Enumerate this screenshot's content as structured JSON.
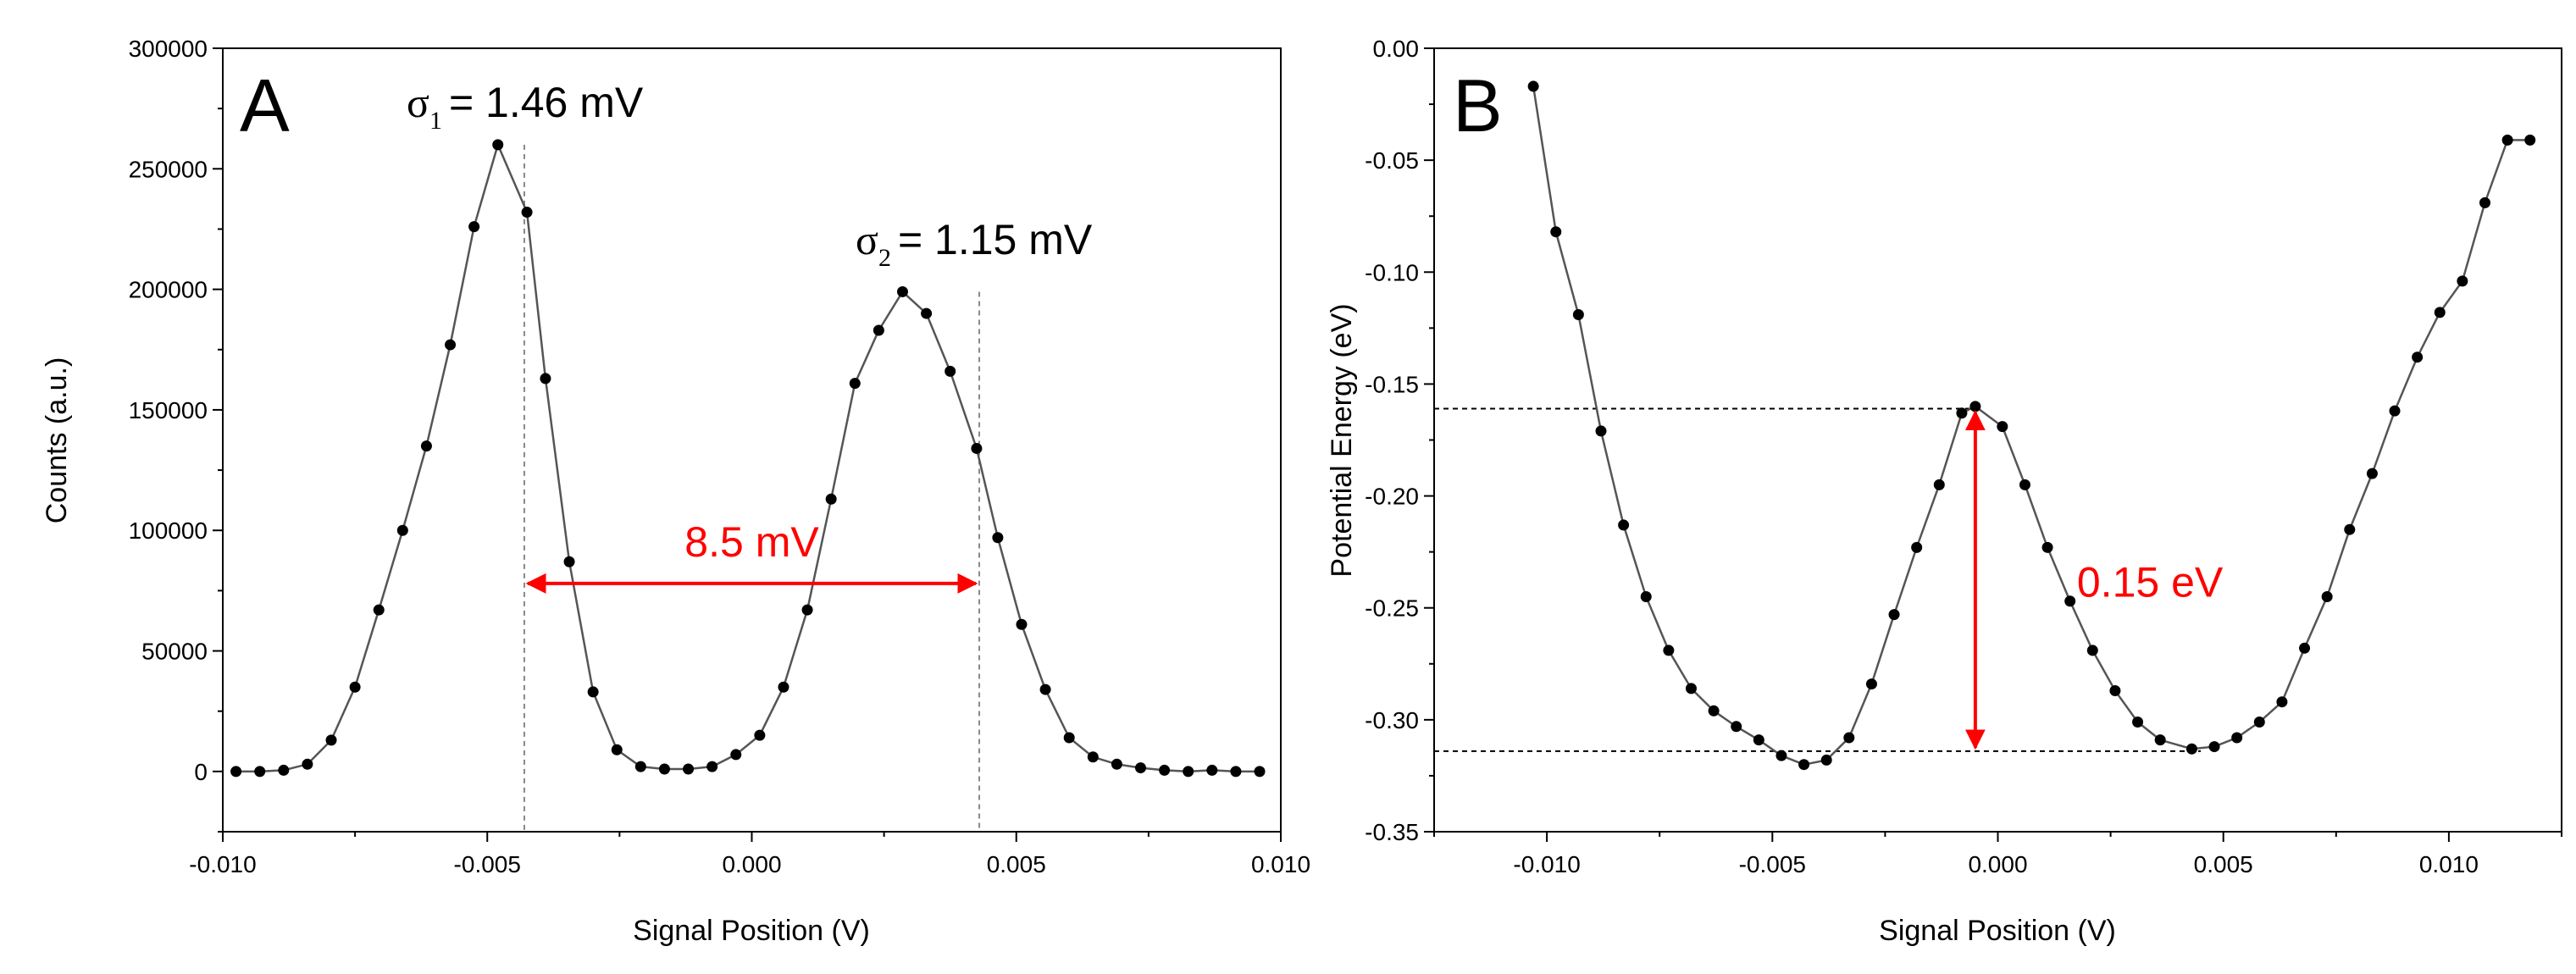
{
  "colors": {
    "line": "#555555",
    "marker": "#000000",
    "annotation": "#ff0000",
    "axis": "#000000"
  },
  "chart_data": [
    {
      "type": "line",
      "panel_label": "A",
      "xlabel": "Signal Position (V)",
      "ylabel": "Counts (a.u.)",
      "xlim": [
        -0.01,
        0.01
      ],
      "ylim": [
        -25000,
        300000
      ],
      "xticks": [
        -0.01,
        -0.005,
        0.0,
        0.005,
        0.01
      ],
      "xtick_labels": [
        "-0.010",
        "-0.005",
        "0.000",
        "0.005",
        "0.010"
      ],
      "yticks": [
        0,
        50000,
        100000,
        150000,
        200000,
        250000,
        300000
      ],
      "ytick_labels": [
        "0",
        "50000",
        "100000",
        "150000",
        "200000",
        "250000",
        "300000"
      ],
      "series": [
        {
          "name": "Counts",
          "x": [
            -0.00975,
            -0.0093,
            -0.00885,
            -0.0084,
            -0.00795,
            -0.0075,
            -0.00705,
            -0.0066,
            -0.00615,
            -0.0057,
            -0.00525,
            -0.0048,
            -0.00425,
            -0.0039,
            -0.00345,
            -0.003,
            -0.00255,
            -0.0021,
            -0.00165,
            -0.0012,
            -0.00075,
            -0.0003,
            0.00015,
            0.0006,
            0.00105,
            0.0015,
            0.00195,
            0.0024,
            0.00285,
            0.0033,
            0.00375,
            0.00425,
            0.00465,
            0.0051,
            0.00555,
            0.006,
            0.00645,
            0.0069,
            0.00735,
            0.0078,
            0.00825,
            0.0087,
            0.00915,
            0.0096
          ],
          "y": [
            0,
            0,
            500,
            3000,
            13000,
            35000,
            67000,
            100000,
            135000,
            177000,
            226000,
            260000,
            232000,
            163000,
            87000,
            33000,
            9000,
            2000,
            1000,
            1000,
            2000,
            7000,
            15000,
            35000,
            67000,
            113000,
            161000,
            183000,
            199000,
            190000,
            166000,
            134000,
            97000,
            61000,
            34000,
            14000,
            6000,
            3000,
            1500,
            500,
            0,
            500,
            0,
            0
          ]
        }
      ],
      "annotations": {
        "sigma1_symbol": "σ",
        "sigma1_sub": "1",
        "sigma1_value": "= 1.46 mV",
        "sigma2_symbol": "σ",
        "sigma2_sub": "2",
        "sigma2_value": "= 1.15 mV",
        "peak_separation": "8.5 mV",
        "peak1_x": -0.0043,
        "peak2_x": 0.0043
      }
    },
    {
      "type": "line",
      "panel_label": "B",
      "xlabel": "Signal Position (V)",
      "ylabel": "Potential Energy (eV)",
      "xlim": [
        -0.0125,
        0.0125
      ],
      "ylim": [
        -0.35,
        0.0
      ],
      "xticks": [
        -0.01,
        -0.005,
        0.0,
        0.005,
        0.01
      ],
      "xtick_labels": [
        "-0.010",
        "-0.005",
        "0.000",
        "0.005",
        "0.010"
      ],
      "yticks": [
        0.0,
        -0.05,
        -0.1,
        -0.15,
        -0.2,
        -0.25,
        -0.3,
        -0.35
      ],
      "ytick_labels": [
        "0.00",
        "-0.05",
        "-0.10",
        "-0.15",
        "-0.20",
        "-0.25",
        "-0.30",
        "-0.35"
      ],
      "series": [
        {
          "name": "Potential Energy",
          "x": [
            -0.0103,
            -0.0098,
            -0.0093,
            -0.0088,
            -0.0083,
            -0.0078,
            -0.0073,
            -0.0068,
            -0.0063,
            -0.0058,
            -0.0053,
            -0.0048,
            -0.0043,
            -0.0038,
            -0.0033,
            -0.0028,
            -0.0023,
            -0.0018,
            -0.0013,
            -0.0008,
            -0.0005,
            0.0001,
            0.0006,
            0.0011,
            0.0016,
            0.0021,
            0.0026,
            0.0031,
            0.0036,
            0.0043,
            0.0048,
            0.0053,
            0.0058,
            0.0063,
            0.0068,
            0.0073,
            0.0078,
            0.0083,
            0.0088,
            0.0093,
            0.0098,
            0.0103,
            0.0108,
            0.0113,
            0.0118
          ],
          "y": [
            -0.017,
            -0.082,
            -0.119,
            -0.171,
            -0.213,
            -0.245,
            -0.269,
            -0.286,
            -0.296,
            -0.303,
            -0.309,
            -0.316,
            -0.32,
            -0.318,
            -0.308,
            -0.284,
            -0.253,
            -0.223,
            -0.195,
            -0.163,
            -0.16,
            -0.169,
            -0.195,
            -0.223,
            -0.247,
            -0.269,
            -0.287,
            -0.301,
            -0.309,
            -0.313,
            -0.312,
            -0.308,
            -0.301,
            -0.292,
            -0.268,
            -0.245,
            -0.215,
            -0.19,
            -0.162,
            -0.138,
            -0.118,
            -0.104,
            -0.069,
            -0.041,
            -0.041
          ]
        }
      ],
      "annotations": {
        "barrier_height": "0.15 eV",
        "barrier_top_y": -0.161,
        "well_bottom_y": -0.314,
        "barrier_x": -0.0005
      }
    }
  ]
}
